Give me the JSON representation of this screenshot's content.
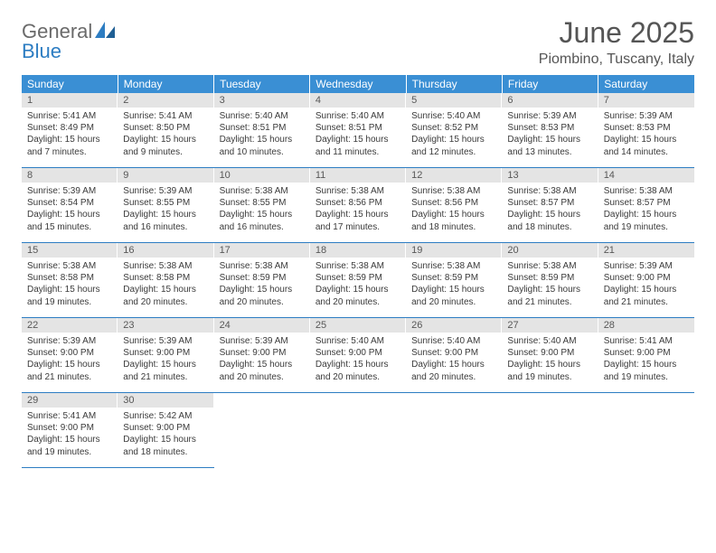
{
  "logo": {
    "general": "General",
    "blue": "Blue"
  },
  "title": "June 2025",
  "location": "Piombino, Tuscany, Italy",
  "colors": {
    "header_bg": "#3a8fd4",
    "header_text": "#ffffff",
    "daynum_bg": "#e4e4e4",
    "rule": "#2d7dc2",
    "title_color": "#555555",
    "logo_gray": "#6a6a6a",
    "logo_blue": "#2d7dc2"
  },
  "weekdays": [
    "Sunday",
    "Monday",
    "Tuesday",
    "Wednesday",
    "Thursday",
    "Friday",
    "Saturday"
  ],
  "weeks": [
    [
      {
        "n": "1",
        "sr": "5:41 AM",
        "ss": "8:49 PM",
        "dl": "15 hours and 7 minutes."
      },
      {
        "n": "2",
        "sr": "5:41 AM",
        "ss": "8:50 PM",
        "dl": "15 hours and 9 minutes."
      },
      {
        "n": "3",
        "sr": "5:40 AM",
        "ss": "8:51 PM",
        "dl": "15 hours and 10 minutes."
      },
      {
        "n": "4",
        "sr": "5:40 AM",
        "ss": "8:51 PM",
        "dl": "15 hours and 11 minutes."
      },
      {
        "n": "5",
        "sr": "5:40 AM",
        "ss": "8:52 PM",
        "dl": "15 hours and 12 minutes."
      },
      {
        "n": "6",
        "sr": "5:39 AM",
        "ss": "8:53 PM",
        "dl": "15 hours and 13 minutes."
      },
      {
        "n": "7",
        "sr": "5:39 AM",
        "ss": "8:53 PM",
        "dl": "15 hours and 14 minutes."
      }
    ],
    [
      {
        "n": "8",
        "sr": "5:39 AM",
        "ss": "8:54 PM",
        "dl": "15 hours and 15 minutes."
      },
      {
        "n": "9",
        "sr": "5:39 AM",
        "ss": "8:55 PM",
        "dl": "15 hours and 16 minutes."
      },
      {
        "n": "10",
        "sr": "5:38 AM",
        "ss": "8:55 PM",
        "dl": "15 hours and 16 minutes."
      },
      {
        "n": "11",
        "sr": "5:38 AM",
        "ss": "8:56 PM",
        "dl": "15 hours and 17 minutes."
      },
      {
        "n": "12",
        "sr": "5:38 AM",
        "ss": "8:56 PM",
        "dl": "15 hours and 18 minutes."
      },
      {
        "n": "13",
        "sr": "5:38 AM",
        "ss": "8:57 PM",
        "dl": "15 hours and 18 minutes."
      },
      {
        "n": "14",
        "sr": "5:38 AM",
        "ss": "8:57 PM",
        "dl": "15 hours and 19 minutes."
      }
    ],
    [
      {
        "n": "15",
        "sr": "5:38 AM",
        "ss": "8:58 PM",
        "dl": "15 hours and 19 minutes."
      },
      {
        "n": "16",
        "sr": "5:38 AM",
        "ss": "8:58 PM",
        "dl": "15 hours and 20 minutes."
      },
      {
        "n": "17",
        "sr": "5:38 AM",
        "ss": "8:59 PM",
        "dl": "15 hours and 20 minutes."
      },
      {
        "n": "18",
        "sr": "5:38 AM",
        "ss": "8:59 PM",
        "dl": "15 hours and 20 minutes."
      },
      {
        "n": "19",
        "sr": "5:38 AM",
        "ss": "8:59 PM",
        "dl": "15 hours and 20 minutes."
      },
      {
        "n": "20",
        "sr": "5:38 AM",
        "ss": "8:59 PM",
        "dl": "15 hours and 21 minutes."
      },
      {
        "n": "21",
        "sr": "5:39 AM",
        "ss": "9:00 PM",
        "dl": "15 hours and 21 minutes."
      }
    ],
    [
      {
        "n": "22",
        "sr": "5:39 AM",
        "ss": "9:00 PM",
        "dl": "15 hours and 21 minutes."
      },
      {
        "n": "23",
        "sr": "5:39 AM",
        "ss": "9:00 PM",
        "dl": "15 hours and 21 minutes."
      },
      {
        "n": "24",
        "sr": "5:39 AM",
        "ss": "9:00 PM",
        "dl": "15 hours and 20 minutes."
      },
      {
        "n": "25",
        "sr": "5:40 AM",
        "ss": "9:00 PM",
        "dl": "15 hours and 20 minutes."
      },
      {
        "n": "26",
        "sr": "5:40 AM",
        "ss": "9:00 PM",
        "dl": "15 hours and 20 minutes."
      },
      {
        "n": "27",
        "sr": "5:40 AM",
        "ss": "9:00 PM",
        "dl": "15 hours and 19 minutes."
      },
      {
        "n": "28",
        "sr": "5:41 AM",
        "ss": "9:00 PM",
        "dl": "15 hours and 19 minutes."
      }
    ],
    [
      {
        "n": "29",
        "sr": "5:41 AM",
        "ss": "9:00 PM",
        "dl": "15 hours and 19 minutes."
      },
      {
        "n": "30",
        "sr": "5:42 AM",
        "ss": "9:00 PM",
        "dl": "15 hours and 18 minutes."
      },
      null,
      null,
      null,
      null,
      null
    ]
  ],
  "labels": {
    "sunrise": "Sunrise: ",
    "sunset": "Sunset: ",
    "daylight": "Daylight: "
  }
}
